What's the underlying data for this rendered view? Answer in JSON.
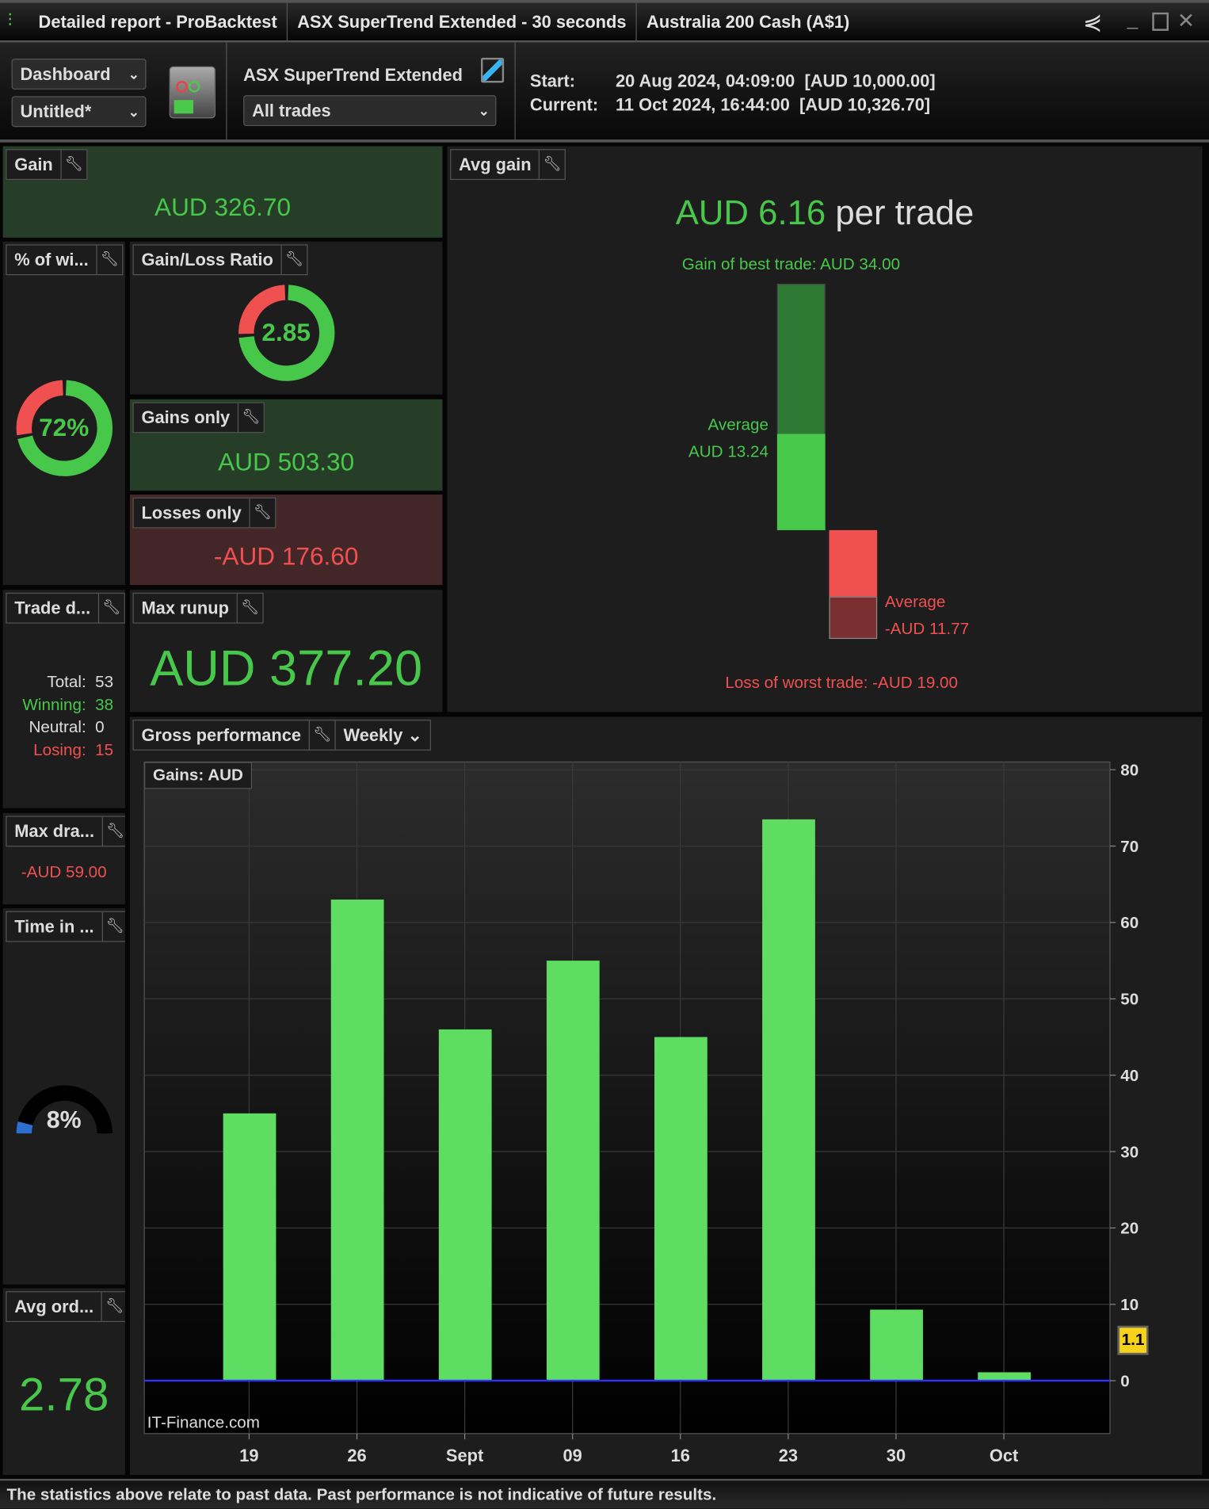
{
  "titlebar": {
    "tabs": [
      "Detailed report - ProBacktest",
      "ASX SuperTrend Extended - 30 seconds",
      "Australia 200 Cash (A$1)"
    ]
  },
  "toolbar": {
    "dashboard": "Dashboard",
    "untitled": "Untitled*",
    "strategy": "ASX SuperTrend Extended",
    "filter": "All trades",
    "start_label": "Start:",
    "start_value": "20 Aug 2024, 04:09:00  [AUD 10,000.00]",
    "current_label": "Current:",
    "current_value": "11 Oct 2024, 16:44:00  [AUD 10,326.70]"
  },
  "panels": {
    "gain": {
      "title": "Gain",
      "value": "AUD 326.70"
    },
    "win_pct": {
      "title": "% of wi...",
      "value": "72%",
      "fraction": 0.72
    },
    "gl_ratio": {
      "title": "Gain/Loss Ratio",
      "value": "2.85",
      "fraction": 0.74
    },
    "gains_only": {
      "title": "Gains only",
      "value": "AUD 503.30"
    },
    "losses_only": {
      "title": "Losses only",
      "value": "-AUD 176.60"
    },
    "trade_d": {
      "title": "Trade d...",
      "rows": [
        {
          "label": "Total:",
          "value": "53"
        },
        {
          "label": "Winning:",
          "value": "38"
        },
        {
          "label": "Neutral:",
          "value": "0"
        },
        {
          "label": "Losing:",
          "value": "15"
        }
      ]
    },
    "max_runup": {
      "title": "Max runup",
      "value": "AUD 377.20"
    },
    "max_dd": {
      "title": "Max dra...",
      "value": "-AUD 59.00"
    },
    "time_in": {
      "title": "Time in ...",
      "value": "8%",
      "fraction": 0.08
    },
    "avg_ord": {
      "title": "Avg ord...",
      "value": "2.78"
    },
    "avg_gain": {
      "title": "Avg gain",
      "value": "AUD 6.16",
      "suffix": " per trade",
      "best": "Gain of best trade: AUD 34.00",
      "avg_win_label": "Average",
      "avg_win_value": "AUD 13.24",
      "avg_loss_label": "Average",
      "avg_loss_value": "-AUD 11.77",
      "worst": "Loss of worst trade: -AUD 19.00",
      "best_v": 34,
      "avg_win_v": 13.24,
      "avg_loss_v": 11.77,
      "worst_v": 19
    }
  },
  "gross": {
    "title": "Gross performance",
    "period": "Weekly",
    "legend": "Gains: AUD",
    "watermark": "IT-Finance.com",
    "last_label": "1.1"
  },
  "chart_data": {
    "type": "bar",
    "title": "Gross performance",
    "categories": [
      "19",
      "26",
      "Sept",
      "09",
      "16",
      "23",
      "30",
      "Oct"
    ],
    "values": [
      35,
      63,
      46,
      55,
      45,
      73.5,
      9.3,
      1.1
    ],
    "ylim": [
      0,
      80
    ],
    "yticks": [
      0,
      10,
      20,
      30,
      40,
      50,
      60,
      70,
      80
    ],
    "ylabel": "Gains: AUD",
    "grid": true
  },
  "footer": "The statistics above relate to past data. Past performance is not indicative of future results.",
  "colors": {
    "green": "#48c84a",
    "red": "#f05050",
    "bar": "#5fdc62"
  }
}
